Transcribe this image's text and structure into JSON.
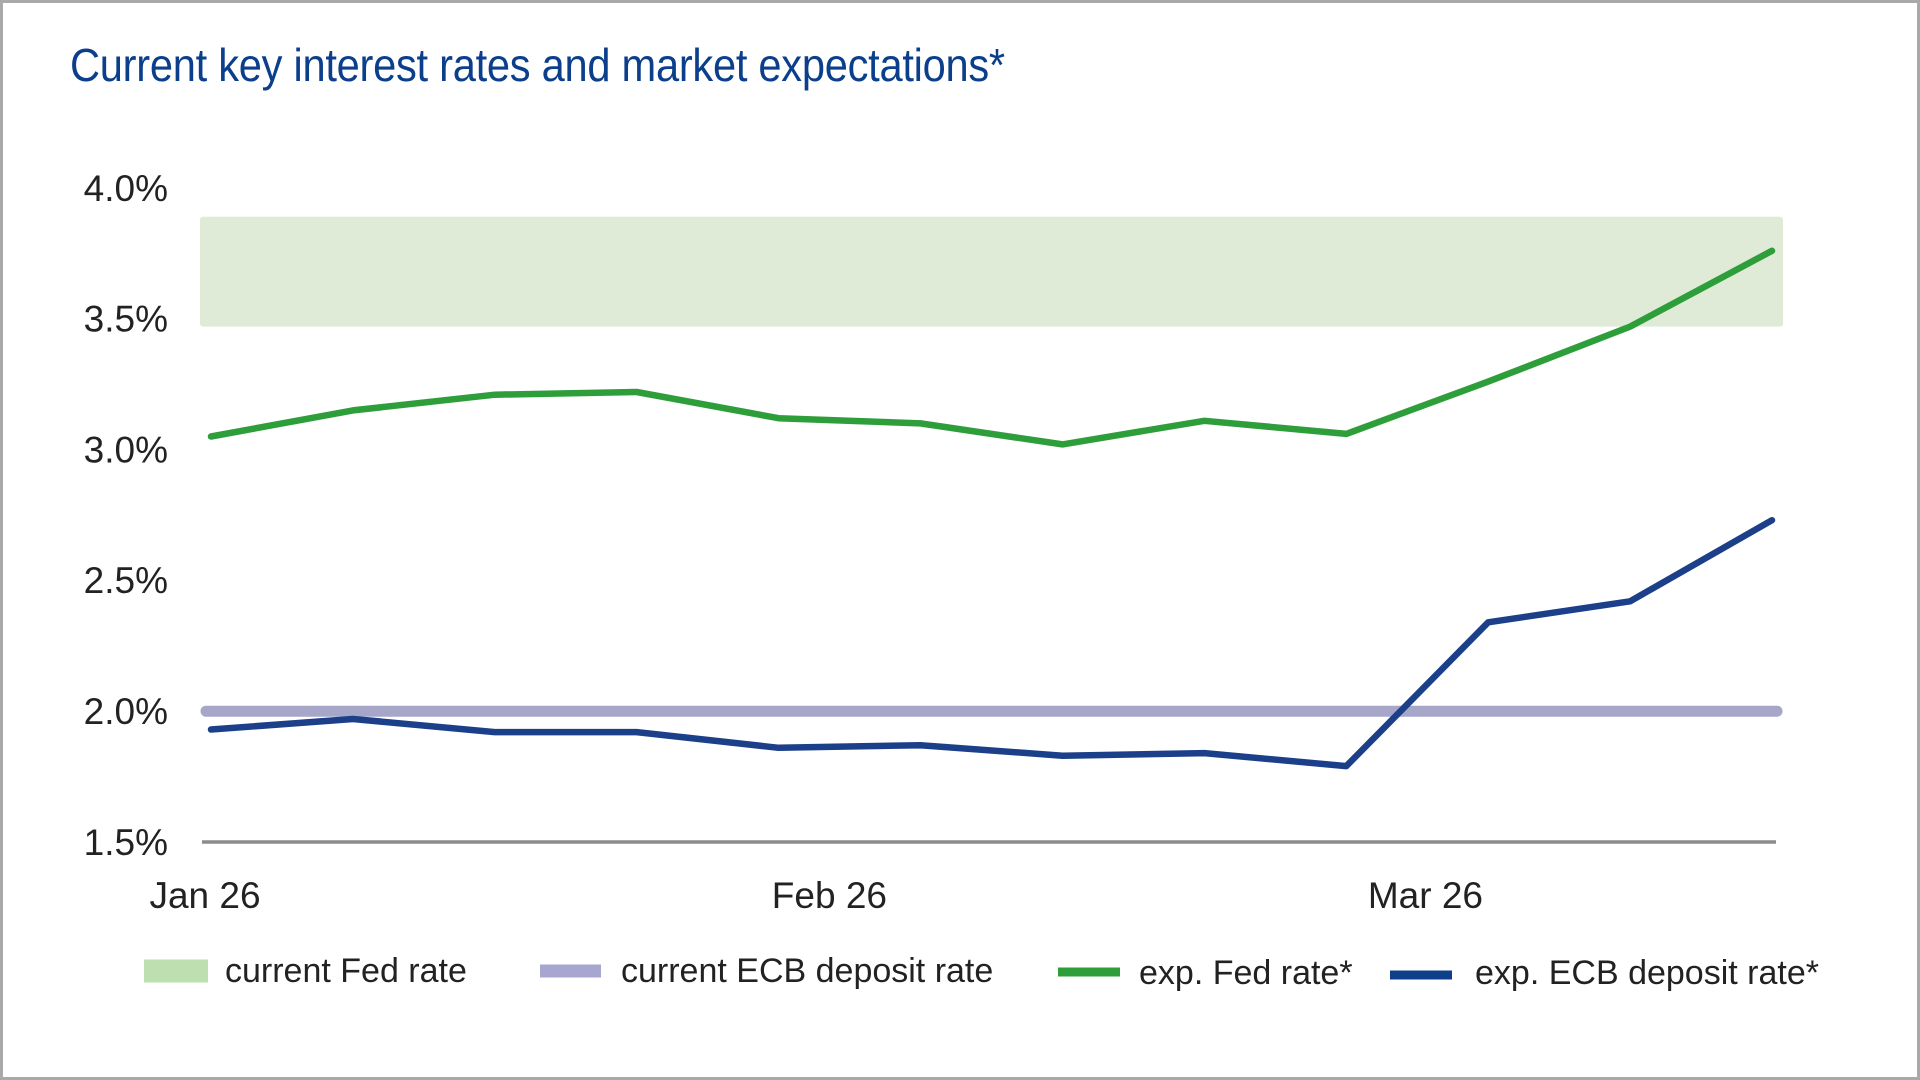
{
  "chart_data": {
    "type": "line",
    "title": "Current key interest rates and market expectations*",
    "xlabel": "",
    "ylabel": "",
    "x_tick_labels": [
      {
        "label": "Jan 26",
        "week_index": 0
      },
      {
        "label": "Feb 26",
        "week_index": 4.4
      },
      {
        "label": "Mar 26",
        "week_index": 8.6
      }
    ],
    "y_ticks": [
      1.5,
      2.0,
      2.5,
      3.0,
      3.5,
      4.0
    ],
    "y_tick_labels": [
      "1.5%",
      "2.0%",
      "2.5%",
      "3.0%",
      "3.5%",
      "4.0%"
    ],
    "ylim": [
      1.5,
      4.0
    ],
    "x_points": 12,
    "grid": false,
    "legend_position": "bottom",
    "bands": [
      {
        "name": "current Fed rate",
        "color": "#dfebd6",
        "legend_color": "#bedfb0",
        "y_low": 3.47,
        "y_high": 3.89
      }
    ],
    "reference_lines": [
      {
        "name": "current ECB deposit rate",
        "color": "#a6a6c9",
        "y": 2.0
      }
    ],
    "series": [
      {
        "name": "exp. Fed rate*",
        "color": "#2e9e3a",
        "values": [
          3.05,
          3.15,
          3.21,
          3.22,
          3.12,
          3.1,
          3.02,
          3.11,
          3.06,
          3.26,
          3.47,
          3.76
        ]
      },
      {
        "name": "exp. ECB deposit rate*",
        "color": "#1c3f8a",
        "values": [
          1.93,
          1.97,
          1.92,
          1.92,
          1.86,
          1.87,
          1.83,
          1.84,
          1.79,
          2.34,
          2.42,
          2.73
        ]
      }
    ],
    "legend": [
      {
        "label": "current Fed rate",
        "kind": "box",
        "color": "#bedfb0"
      },
      {
        "label": "current ECB deposit rate",
        "kind": "box",
        "color": "#a6a6d0"
      },
      {
        "label": "exp. Fed rate*",
        "kind": "line",
        "color": "#2e9e3a"
      },
      {
        "label": "exp. ECB deposit rate*",
        "kind": "line",
        "color": "#0f3f8a"
      }
    ],
    "axis_color": "#8c8c8c"
  }
}
